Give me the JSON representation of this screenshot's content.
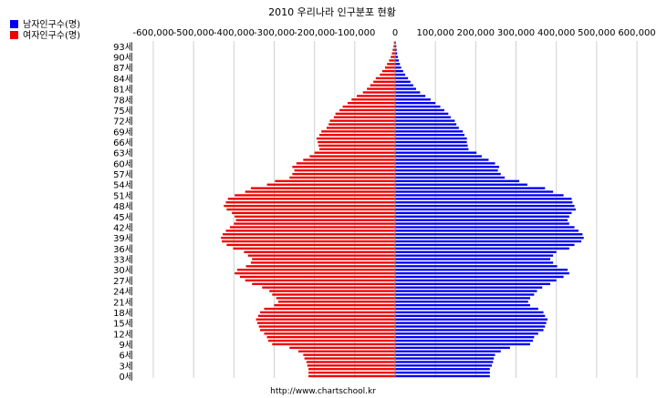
{
  "chart_data": {
    "type": "bar",
    "orientation": "horizontal-pyramid",
    "title": "2010 우리나라 인구분포 현황",
    "footer": "http://www.chartschool.kr",
    "xlim": [
      -600000,
      600000
    ],
    "x_ticks": [
      -600000,
      -500000,
      -400000,
      -300000,
      -200000,
      -100000,
      0,
      100000,
      200000,
      300000,
      400000,
      500000,
      600000
    ],
    "x_tick_labels": [
      "-600,000",
      "-500,000",
      "-400,000",
      "-300,000",
      "-200,000",
      "-100,000",
      "0",
      "100,000",
      "200,000",
      "300,000",
      "400,000",
      "500,000",
      "600,000"
    ],
    "grid": true,
    "legend_position": "top-left",
    "y_label_suffix": "세",
    "y_label_every": 3,
    "ages": [
      0,
      1,
      2,
      3,
      4,
      5,
      6,
      7,
      8,
      9,
      10,
      11,
      12,
      13,
      14,
      15,
      16,
      17,
      18,
      19,
      20,
      21,
      22,
      23,
      24,
      25,
      26,
      27,
      28,
      29,
      30,
      31,
      32,
      33,
      34,
      35,
      36,
      37,
      38,
      39,
      40,
      41,
      42,
      43,
      44,
      45,
      46,
      47,
      48,
      49,
      50,
      51,
      52,
      53,
      54,
      55,
      56,
      57,
      58,
      59,
      60,
      61,
      62,
      63,
      64,
      65,
      66,
      67,
      68,
      69,
      70,
      71,
      72,
      73,
      74,
      75,
      76,
      77,
      78,
      79,
      80,
      81,
      82,
      83,
      84,
      85,
      86,
      87,
      88,
      89,
      90,
      91,
      92,
      93,
      94
    ],
    "series": [
      {
        "name": "남자인구수(명)",
        "color": "#0000ee",
        "values": [
          235000,
          235000,
          235000,
          240000,
          243000,
          245000,
          248000,
          262000,
          285000,
          335000,
          342000,
          345000,
          355000,
          368000,
          372000,
          375000,
          378000,
          372000,
          368000,
          355000,
          335000,
          330000,
          335000,
          345000,
          352000,
          365000,
          385000,
          400000,
          418000,
          432000,
          428000,
          402000,
          392000,
          385000,
          392000,
          400000,
          432000,
          445000,
          462000,
          468000,
          465000,
          455000,
          445000,
          432000,
          428000,
          432000,
          438000,
          448000,
          445000,
          440000,
          438000,
          418000,
          392000,
          372000,
          328000,
          308000,
          272000,
          262000,
          255000,
          258000,
          248000,
          232000,
          215000,
          202000,
          182000,
          180000,
          178000,
          178000,
          172000,
          168000,
          158000,
          152000,
          148000,
          138000,
          132000,
          122000,
          112000,
          100000,
          88000,
          75000,
          62000,
          52000,
          45000,
          38000,
          32000,
          25000,
          20000,
          15000,
          12000,
          9000,
          7000,
          5000,
          4000,
          3000,
          2000
        ]
      },
      {
        "name": "여자인구수(명)",
        "color": "#ee0000",
        "values": [
          215000,
          215000,
          215000,
          218000,
          220000,
          225000,
          228000,
          240000,
          262000,
          305000,
          315000,
          318000,
          325000,
          335000,
          338000,
          342000,
          345000,
          340000,
          335000,
          325000,
          300000,
          290000,
          295000,
          305000,
          312000,
          330000,
          355000,
          372000,
          385000,
          398000,
          392000,
          370000,
          358000,
          355000,
          365000,
          375000,
          402000,
          418000,
          430000,
          432000,
          428000,
          420000,
          410000,
          400000,
          395000,
          398000,
          405000,
          418000,
          425000,
          420000,
          415000,
          398000,
          372000,
          358000,
          318000,
          298000,
          262000,
          255000,
          250000,
          255000,
          245000,
          228000,
          212000,
          200000,
          188000,
          190000,
          192000,
          195000,
          188000,
          183000,
          170000,
          165000,
          162000,
          152000,
          148000,
          138000,
          130000,
          118000,
          108000,
          95000,
          80000,
          70000,
          62000,
          54000,
          48000,
          38000,
          32000,
          25000,
          20000,
          15000,
          11000,
          8000,
          6000,
          4000,
          3000
        ]
      }
    ]
  }
}
